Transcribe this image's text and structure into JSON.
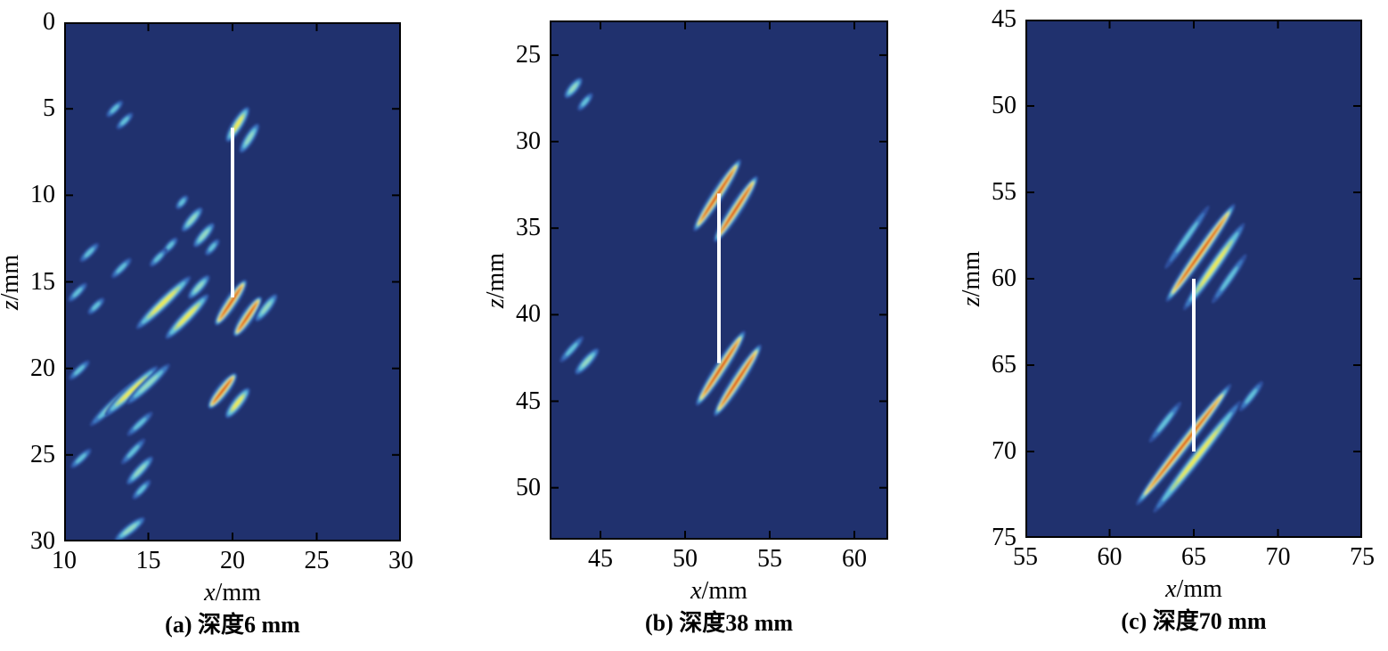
{
  "figure": {
    "description": "Three-panel ultrasonic imaging result of cracks at different depths, jet colormap on dark blue background, white vertical crack reference line in each panel",
    "units": "mm",
    "palette": {
      "plot_background": "#20316e",
      "streak_halo": "#2d4f9e",
      "streak_blue": "#3e7cc4",
      "streak_cyan": "#66c6dc",
      "streak_pale": "#9adcc0",
      "streak_green": "#b2dc80",
      "streak_yellow": "#f2ec4f",
      "streak_orange": "#f59a32",
      "streak_red": "#d4291d",
      "reference_line": "#ffffff",
      "axis": "#000000",
      "text": "#000000"
    }
  },
  "chart_data": [
    {
      "type": "heatmap",
      "id": "a",
      "caption": "(a) 深度6 mm",
      "xlabel_var": "x",
      "xlabel_unit": "/mm",
      "ylabel_var": "z",
      "ylabel_unit": "/mm",
      "xlim": [
        10,
        30
      ],
      "zlim": [
        0,
        30
      ],
      "xticks": [
        10,
        15,
        20,
        25,
        30
      ],
      "zticks": [
        0,
        5,
        10,
        15,
        20,
        25,
        30
      ],
      "reference_line": {
        "x": 20,
        "z_from": 6.1,
        "z_to": 15.9
      },
      "streaks": [
        [
          13.0,
          5.0,
          1.3,
          -45,
          1
        ],
        [
          13.6,
          5.7,
          1.3,
          -45,
          1
        ],
        [
          20.3,
          5.9,
          2.4,
          -58,
          3
        ],
        [
          21.0,
          6.7,
          2.0,
          -58,
          2
        ],
        [
          17.0,
          10.4,
          1.0,
          -50,
          1
        ],
        [
          17.6,
          11.4,
          1.8,
          -50,
          2
        ],
        [
          18.3,
          12.3,
          1.8,
          -50,
          2
        ],
        [
          18.8,
          13.0,
          1.2,
          -50,
          1
        ],
        [
          16.3,
          12.9,
          1.2,
          -48,
          1
        ],
        [
          15.6,
          13.6,
          1.4,
          -46,
          1
        ],
        [
          11.5,
          13.3,
          1.5,
          -45,
          1
        ],
        [
          13.4,
          14.2,
          1.6,
          -45,
          1
        ],
        [
          10.8,
          15.6,
          1.5,
          -45,
          1
        ],
        [
          11.9,
          16.4,
          1.3,
          -45,
          1
        ],
        [
          15.9,
          16.2,
          4.4,
          -44,
          3
        ],
        [
          17.3,
          17.0,
          3.6,
          -46,
          3
        ],
        [
          18.0,
          15.3,
          1.8,
          -48,
          2
        ],
        [
          19.9,
          16.2,
          3.2,
          -56,
          4
        ],
        [
          20.9,
          17.0,
          2.8,
          -56,
          4
        ],
        [
          22.0,
          16.5,
          2.0,
          -52,
          2
        ],
        [
          13.0,
          22.0,
          3.9,
          -43,
          2
        ],
        [
          14.0,
          21.3,
          4.2,
          -43,
          3
        ],
        [
          15.0,
          20.9,
          3.4,
          -43,
          2
        ],
        [
          10.9,
          20.1,
          1.6,
          -43,
          1
        ],
        [
          14.5,
          23.2,
          2.0,
          -43,
          1
        ],
        [
          19.4,
          21.3,
          2.6,
          -52,
          4
        ],
        [
          20.3,
          22.0,
          2.2,
          -52,
          3
        ],
        [
          14.1,
          24.8,
          2.0,
          -47,
          1
        ],
        [
          14.5,
          25.9,
          2.2,
          -47,
          2
        ],
        [
          14.6,
          27.0,
          1.5,
          -47,
          1
        ],
        [
          11.0,
          25.2,
          1.6,
          -43,
          1
        ],
        [
          13.9,
          29.3,
          2.2,
          -38,
          2
        ]
      ]
    },
    {
      "type": "heatmap",
      "id": "b",
      "caption": "(b) 深度38 mm",
      "xlabel_var": "x",
      "xlabel_unit": "/mm",
      "ylabel_var": "z",
      "ylabel_unit": "/mm",
      "xlim": [
        42,
        62
      ],
      "zlim": [
        23,
        53
      ],
      "xticks": [
        45,
        50,
        55,
        60
      ],
      "zticks": [
        25,
        30,
        35,
        40,
        45,
        50
      ],
      "reference_line": {
        "x": 52,
        "z_from": 33.0,
        "z_to": 42.8
      },
      "streaks": [
        [
          43.4,
          26.9,
          1.5,
          -50,
          2
        ],
        [
          44.1,
          27.7,
          1.3,
          -50,
          1
        ],
        [
          51.9,
          33.1,
          5.0,
          -57,
          4
        ],
        [
          53.0,
          33.9,
          4.6,
          -57,
          4
        ],
        [
          43.3,
          42.0,
          2.0,
          -48,
          1
        ],
        [
          44.2,
          42.7,
          2.0,
          -48,
          2
        ],
        [
          52.1,
          43.1,
          5.2,
          -57,
          4
        ],
        [
          53.1,
          43.8,
          5.0,
          -57,
          4
        ]
      ]
    },
    {
      "type": "heatmap",
      "id": "c",
      "caption": "(c) 深度70 mm",
      "xlabel_var": "x",
      "xlabel_unit": "/mm",
      "ylabel_var": "z",
      "ylabel_unit": "/mm",
      "xlim": [
        55,
        75
      ],
      "zlim": [
        45,
        75
      ],
      "xticks": [
        55,
        60,
        65,
        70,
        75
      ],
      "zticks": [
        45,
        50,
        55,
        60,
        65,
        70,
        75
      ],
      "reference_line": {
        "x": 65,
        "z_from": 60.0,
        "z_to": 70.0
      },
      "streaks": [
        [
          64.6,
          57.6,
          4.5,
          -55,
          1
        ],
        [
          65.4,
          58.5,
          7.0,
          -55,
          4
        ],
        [
          66.2,
          59.3,
          6.2,
          -55,
          3
        ],
        [
          67.1,
          60.0,
          3.5,
          -55,
          1
        ],
        [
          63.3,
          68.3,
          3.0,
          -52,
          1
        ],
        [
          64.4,
          69.6,
          9.0,
          -52,
          4
        ],
        [
          65.2,
          70.3,
          8.3,
          -52,
          3
        ],
        [
          68.4,
          66.8,
          2.2,
          -52,
          1
        ]
      ]
    }
  ]
}
